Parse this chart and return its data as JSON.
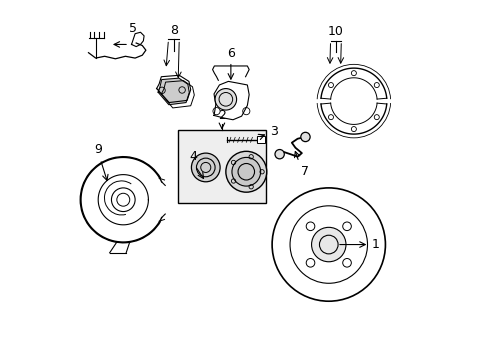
{
  "bg_color": "#ffffff",
  "line_color": "#000000",
  "label_color": "#000000"
}
